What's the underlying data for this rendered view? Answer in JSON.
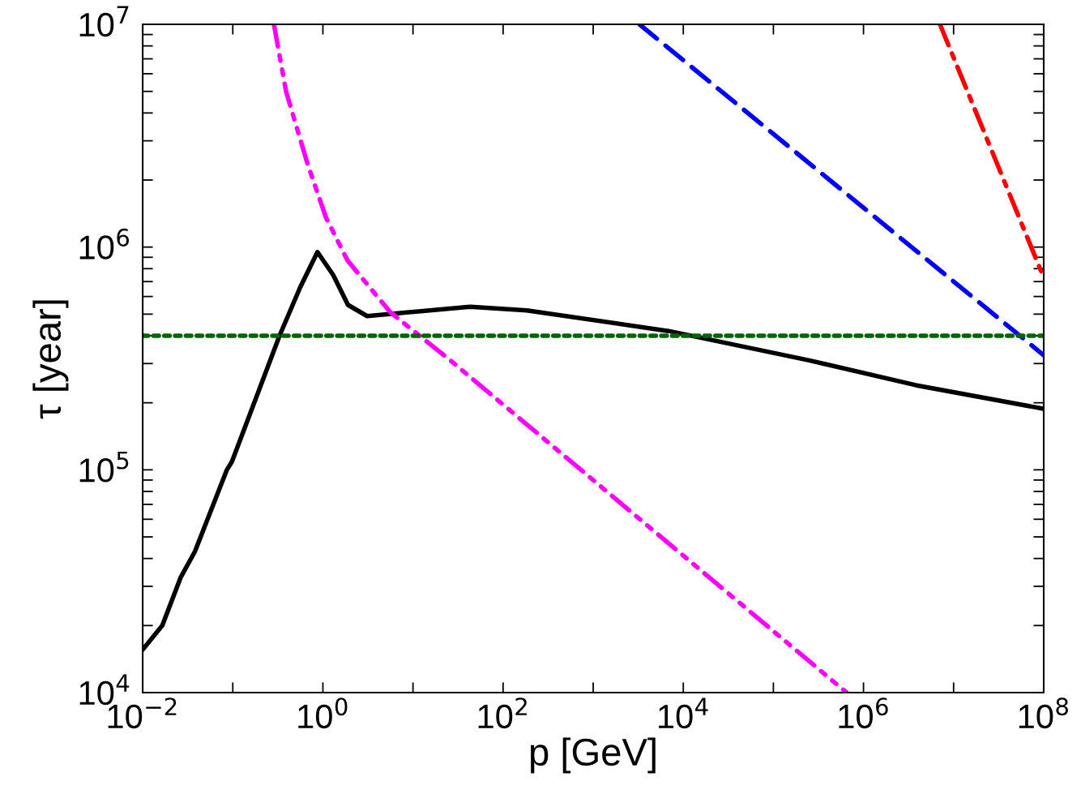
{
  "chart_data": {
    "type": "line",
    "xlabel": "p [GeV]",
    "ylabel": "τ [year]",
    "log": "xy",
    "xlim": [
      0.01,
      100000000
    ],
    "ylim": [
      10000,
      10000000
    ],
    "xticks": [
      {
        "value": 0.01,
        "label": "10$^{−2}$"
      },
      {
        "value": 0.1,
        "label": null
      },
      {
        "value": 1,
        "label": "10$^{0}$"
      },
      {
        "value": 10,
        "label": null
      },
      {
        "value": 100,
        "label": "10$^{2}$"
      },
      {
        "value": 1000,
        "label": null
      },
      {
        "value": 10000,
        "label": "10$^{4}$"
      },
      {
        "value": 100000,
        "label": null
      },
      {
        "value": 1000000,
        "label": "10$^{6}$"
      },
      {
        "value": 10000000,
        "label": null
      },
      {
        "value": 100000000,
        "label": "10$^{8}$"
      }
    ],
    "yticks": [
      {
        "value": 10000,
        "label": "10$^{4}$"
      },
      {
        "value": 20000,
        "label": null
      },
      {
        "value": 30000,
        "label": null
      },
      {
        "value": 40000,
        "label": null
      },
      {
        "value": 50000,
        "label": null
      },
      {
        "value": 60000,
        "label": null
      },
      {
        "value": 70000,
        "label": null
      },
      {
        "value": 80000,
        "label": null
      },
      {
        "value": 90000,
        "label": null
      },
      {
        "value": 100000,
        "label": "10$^{5}$"
      },
      {
        "value": 200000,
        "label": null
      },
      {
        "value": 300000,
        "label": null
      },
      {
        "value": 400000,
        "label": null
      },
      {
        "value": 500000,
        "label": null
      },
      {
        "value": 600000,
        "label": null
      },
      {
        "value": 700000,
        "label": null
      },
      {
        "value": 800000,
        "label": null
      },
      {
        "value": 900000,
        "label": null
      },
      {
        "value": 1000000,
        "label": "10$^{6}$"
      },
      {
        "value": 2000000,
        "label": null
      },
      {
        "value": 3000000,
        "label": null
      },
      {
        "value": 4000000,
        "label": null
      },
      {
        "value": 5000000,
        "label": null
      },
      {
        "value": 6000000,
        "label": null
      },
      {
        "value": 7000000,
        "label": null
      },
      {
        "value": 8000000,
        "label": null
      },
      {
        "value": 9000000,
        "label": null
      },
      {
        "value": 10000000,
        "label": "10$^{7}$"
      }
    ],
    "grid": false,
    "marker": "none",
    "series": [
      {
        "color": "#000000",
        "line_style": "solid",
        "x": [
          0.01,
          0.0165,
          0.0265,
          0.038,
          0.086,
          0.098,
          0.197,
          0.33,
          0.56,
          0.87,
          1.3,
          1.9,
          3.1,
          43,
          183,
          6860,
          250000,
          3800000,
          100000000
        ],
        "values": [
          15600,
          20000,
          33000,
          43000,
          100000,
          109000,
          230000,
          400000,
          660000,
          950000,
          750000,
          550000,
          490000,
          540000,
          520000,
          420000,
          310000,
          240000,
          188000
        ]
      },
      {
        "color": "#ff00ff",
        "line_style": "dashdotdot",
        "x": [
          0.286,
          0.39,
          0.67,
          1.08,
          1.88,
          5.6,
          27,
          650000
        ],
        "values": [
          10000000,
          5000000,
          2390000,
          1360000,
          870000,
          510000,
          306000,
          10000
        ]
      },
      {
        "color": "#0000ff",
        "line_style": "dashed",
        "x": [
          3260,
          100000000
        ],
        "values": [
          10000000,
          327000
        ]
      },
      {
        "color": "#ff0000",
        "line_style": "dashdot",
        "x": [
          7060000,
          100000000
        ],
        "values": [
          10000000,
          730000
        ]
      }
    ],
    "ref_lines": [
      {
        "axis": "y",
        "value": 400000,
        "color": "#006400",
        "line_style": "dotted"
      }
    ]
  }
}
